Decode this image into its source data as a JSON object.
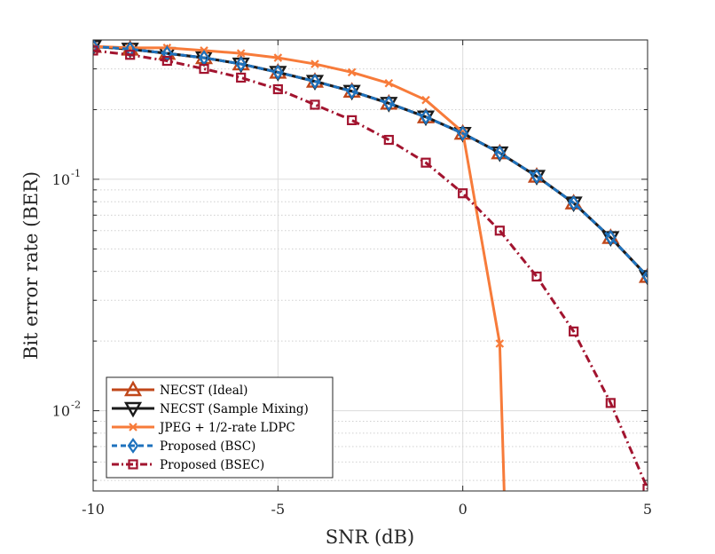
{
  "chart_data": {
    "type": "line",
    "title": "",
    "xlabel": "SNR (dB)",
    "ylabel": "Bit error rate (BER)",
    "xscale": "linear",
    "yscale": "log",
    "xlim": [
      -10,
      5
    ],
    "ylim": [
      0.0045,
      0.4
    ],
    "xticks": [
      -10,
      -5,
      0,
      5
    ],
    "xtick_labels": [
      "-10",
      "-5",
      "0",
      "5"
    ],
    "yticks": [
      0.1,
      0.01
    ],
    "ytick_labels": [
      {
        "base": "10",
        "exp": "-1"
      },
      {
        "base": "10",
        "exp": "-2"
      }
    ],
    "grid": true,
    "legend_position": "bottom-left",
    "series": [
      {
        "name": "NECST (Ideal)",
        "color": "#C0471A",
        "line_style": "solid",
        "marker": "triangle-up",
        "x": [
          -10,
          -9,
          -8,
          -7,
          -6,
          -5,
          -4,
          -3,
          -2,
          -1,
          0,
          1,
          2,
          3,
          4,
          5
        ],
        "y": [
          0.375,
          0.365,
          0.35,
          0.335,
          0.315,
          0.29,
          0.265,
          0.24,
          0.213,
          0.186,
          0.158,
          0.13,
          0.103,
          0.079,
          0.056,
          0.038
        ]
      },
      {
        "name": "NECST (Sample Mixing)",
        "color": "#1A1A1A",
        "line_style": "solid",
        "marker": "triangle-down",
        "x": [
          -10,
          -9,
          -8,
          -7,
          -6,
          -5,
          -4,
          -3,
          -2,
          -1,
          0,
          1,
          2,
          3,
          4,
          5
        ],
        "y": [
          0.375,
          0.365,
          0.35,
          0.335,
          0.315,
          0.29,
          0.265,
          0.24,
          0.213,
          0.186,
          0.158,
          0.13,
          0.103,
          0.079,
          0.056,
          0.038
        ]
      },
      {
        "name": "JPEG + 1/2-rate LDPC",
        "color": "#F77B3A",
        "line_style": "solid",
        "marker": "x",
        "x": [
          -10,
          -9,
          -8,
          -7,
          -6,
          -5,
          -4,
          -3,
          -2,
          -1,
          0,
          1,
          1.12
        ],
        "y": [
          0.375,
          0.37,
          0.37,
          0.36,
          0.35,
          0.335,
          0.315,
          0.29,
          0.26,
          0.22,
          0.16,
          0.0195,
          0.0045
        ]
      },
      {
        "name": "Proposed (BSC)",
        "color": "#1E72BD",
        "line_style": "dashed",
        "marker": "diamond",
        "x": [
          -10,
          -9,
          -8,
          -7,
          -6,
          -5,
          -4,
          -3,
          -2,
          -1,
          0,
          1,
          2,
          3,
          4,
          5
        ],
        "y": [
          0.375,
          0.365,
          0.35,
          0.335,
          0.315,
          0.29,
          0.265,
          0.24,
          0.213,
          0.186,
          0.158,
          0.13,
          0.103,
          0.079,
          0.056,
          0.038
        ]
      },
      {
        "name": "Proposed (BSEC)",
        "color": "#A2142F",
        "line_style": "dashdot",
        "marker": "square",
        "x": [
          -10,
          -9,
          -8,
          -7,
          -6,
          -5,
          -4,
          -3,
          -2,
          -1,
          0,
          1,
          2,
          3,
          4,
          5
        ],
        "y": [
          0.36,
          0.345,
          0.325,
          0.3,
          0.275,
          0.245,
          0.21,
          0.18,
          0.148,
          0.118,
          0.087,
          0.06,
          0.038,
          0.022,
          0.0108,
          0.0046
        ]
      }
    ]
  }
}
